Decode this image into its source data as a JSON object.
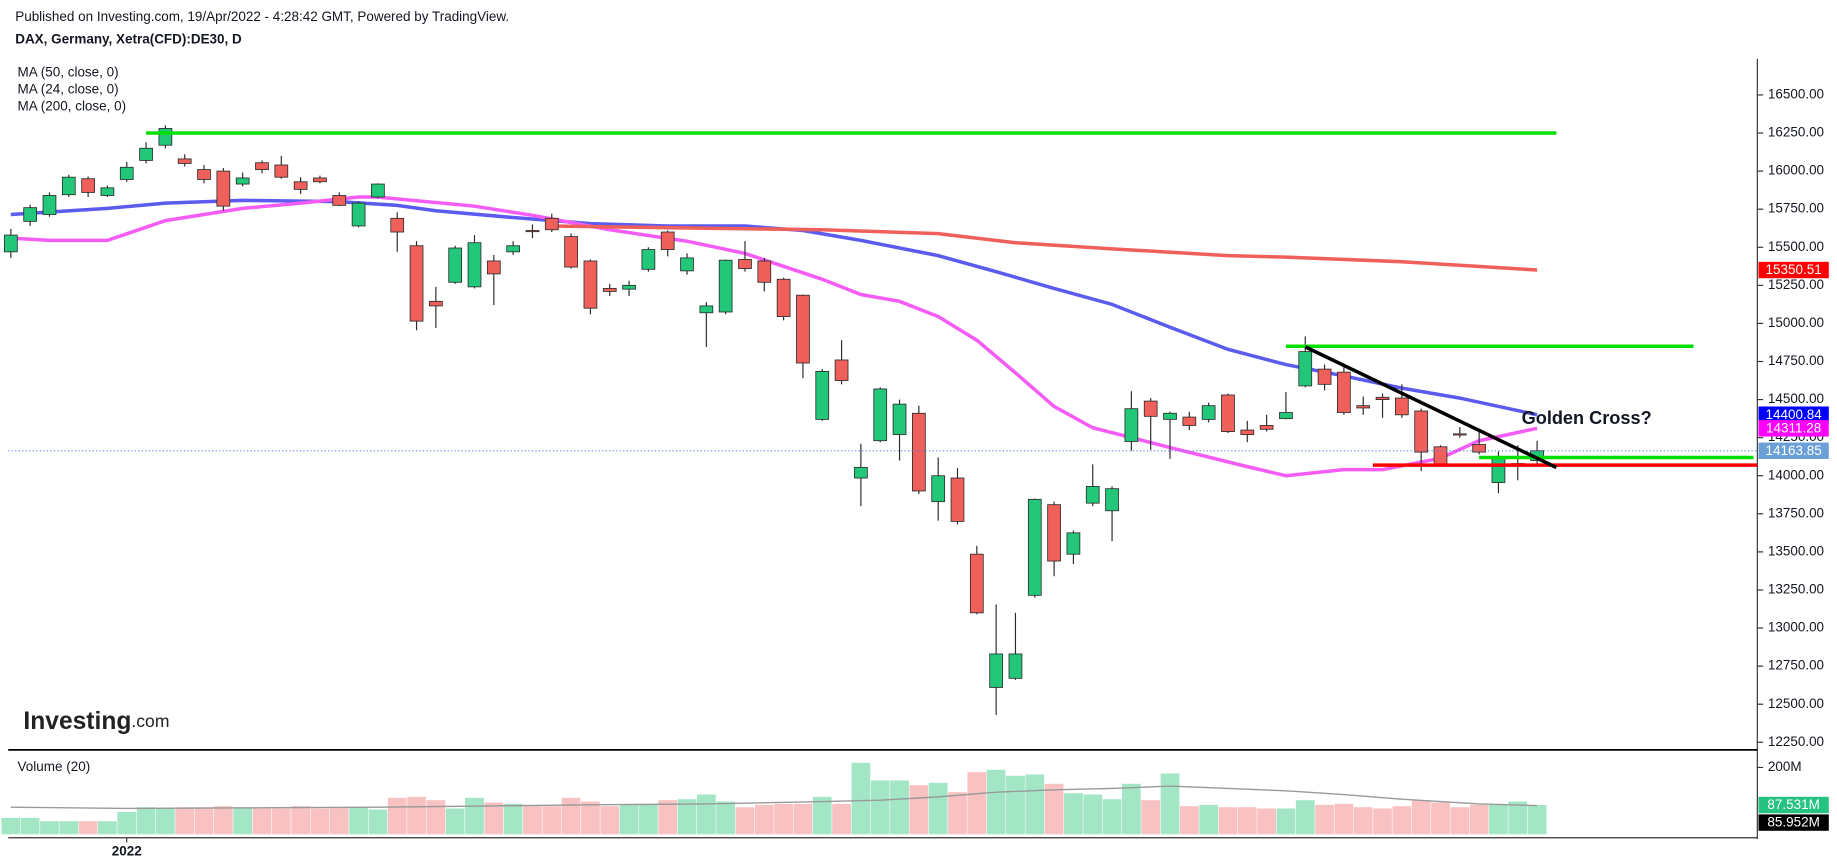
{
  "chart_data": {
    "type": "candlestick",
    "subtitle": "Published on Investing.com, 19/Apr/2022 - 4:28:42 GMT, Powered by TradingView.",
    "title": "DAX, Germany, Xetra(CFD):DE30, D",
    "categories": [
      null,
      null,
      null,
      null,
      null,
      null,
      "2022",
      null,
      null,
      null,
      null,
      null,
      null,
      null,
      null,
      null,
      null,
      null,
      null,
      null,
      null,
      null,
      null,
      null,
      null,
      null,
      null,
      null,
      null,
      null,
      null,
      null,
      null,
      null,
      null,
      null,
      null,
      null,
      null,
      null,
      null,
      null,
      null,
      null,
      null,
      null,
      null,
      null,
      null,
      null,
      null,
      null,
      null,
      null,
      null,
      null,
      null,
      null,
      null,
      null,
      null,
      null,
      null,
      null,
      null,
      null,
      null,
      null,
      null,
      null,
      null,
      null,
      null,
      null,
      null,
      null,
      null,
      null,
      null,
      null
    ],
    "open": [
      15470,
      15670,
      15715,
      15845,
      15950,
      15840,
      15945,
      16070,
      16170,
      16080,
      16010,
      16000,
      15915,
      16055,
      16040,
      15930,
      15955,
      15840,
      15640,
      15830,
      15690,
      15510,
      15145,
      15270,
      15240,
      15410,
      15470,
      15610,
      15690,
      15570,
      15410,
      15230,
      15225,
      15355,
      15600,
      15345,
      15070,
      15075,
      15420,
      15410,
      15290,
      15185,
      14370,
      14760,
      13985,
      14230,
      14270,
      14410,
      13830,
      13985,
      13485,
      12610,
      12670,
      13215,
      13810,
      13485,
      13820,
      13770,
      14225,
      14490,
      14370,
      14385,
      14370,
      14530,
      14300,
      14330,
      14375,
      14590,
      14700,
      14680,
      14460,
      14515,
      14510,
      14425,
      14190,
      14275,
      14205,
      13955,
      14070,
      14100
    ],
    "high": [
      15620,
      15780,
      15860,
      15975,
      15965,
      15905,
      16060,
      16190,
      16300,
      16110,
      16040,
      16020,
      15990,
      16070,
      16100,
      15960,
      15970,
      15860,
      15800,
      15920,
      15730,
      15540,
      15240,
      15510,
      15580,
      15450,
      15540,
      15650,
      15720,
      15590,
      15420,
      15260,
      15280,
      15500,
      15610,
      15460,
      15140,
      15420,
      15540,
      15430,
      15300,
      15190,
      14700,
      14890,
      14210,
      14580,
      14500,
      14460,
      14120,
      14050,
      13540,
      13155,
      13100,
      13850,
      13830,
      13640,
      14075,
      13930,
      14555,
      14510,
      14420,
      14420,
      14480,
      14540,
      14360,
      14400,
      14550,
      14915,
      14730,
      14720,
      14520,
      14540,
      14600,
      14440,
      14200,
      14320,
      14290,
      14160,
      14200,
      14230
    ],
    "low": [
      15430,
      15640,
      15700,
      15830,
      15830,
      15830,
      15930,
      16050,
      16150,
      16030,
      15920,
      15740,
      15900,
      15985,
      15950,
      15850,
      15920,
      15770,
      15630,
      15820,
      15470,
      14955,
      14970,
      15260,
      15230,
      15120,
      15450,
      15560,
      15600,
      15360,
      15060,
      15180,
      15180,
      15340,
      15440,
      15320,
      14845,
      15060,
      15340,
      15210,
      15020,
      14640,
      14360,
      14600,
      13800,
      14220,
      14100,
      13880,
      13705,
      13680,
      13090,
      12430,
      12660,
      13200,
      13340,
      13420,
      13800,
      13570,
      14165,
      14170,
      14110,
      14300,
      14350,
      14280,
      14220,
      14290,
      14370,
      14580,
      14560,
      14400,
      14400,
      14380,
      14380,
      14030,
      14060,
      14250,
      14140,
      13885,
      13970,
      14080
    ],
    "close": [
      15580,
      15760,
      15840,
      15960,
      15860,
      15890,
      16025,
      16150,
      16280,
      16050,
      15945,
      15770,
      15955,
      16010,
      15960,
      15880,
      15930,
      15775,
      15790,
      15915,
      15600,
      15015,
      15115,
      15495,
      15530,
      15325,
      15510,
      15605,
      15615,
      15370,
      15100,
      15210,
      15250,
      15485,
      15485,
      15430,
      15115,
      15415,
      15360,
      15270,
      15045,
      14740,
      14685,
      14625,
      14055,
      14570,
      14470,
      13900,
      14000,
      13700,
      13100,
      12830,
      12830,
      13845,
      13440,
      13625,
      13930,
      13915,
      14440,
      14390,
      14410,
      14330,
      14460,
      14290,
      14270,
      14305,
      14415,
      14815,
      14600,
      14415,
      14445,
      14500,
      14400,
      14155,
      14075,
      14270,
      14155,
      14125,
      14080,
      14163.85
    ],
    "up_color": "#22c77a",
    "down_color": "#f0605a",
    "border_color": "#2b2b2b",
    "xlim": [
      -0.5,
      90.4
    ],
    "ylim": [
      12200,
      16738
    ],
    "yticks": [
      {
        "value": 12250,
        "label": "12250.00"
      },
      {
        "value": 12500,
        "label": "12500.00"
      },
      {
        "value": 12750,
        "label": "12750.00"
      },
      {
        "value": 13000,
        "label": "13000.00"
      },
      {
        "value": 13250,
        "label": "13250.00"
      },
      {
        "value": 13500,
        "label": "13500.00"
      },
      {
        "value": 13750,
        "label": "13750.00"
      },
      {
        "value": 14000,
        "label": "14000.00"
      },
      {
        "value": 14250,
        "label": "14250.00"
      },
      {
        "value": 14500,
        "label": "14500.00"
      },
      {
        "value": 14750,
        "label": "14750.00"
      },
      {
        "value": 15000,
        "label": "15000.00"
      },
      {
        "value": 15250,
        "label": "15250.00"
      },
      {
        "value": 15500,
        "label": "15500.00"
      },
      {
        "value": 15750,
        "label": "15750.00"
      },
      {
        "value": 16000,
        "label": "16000.00"
      },
      {
        "value": 16250,
        "label": "16250.00"
      },
      {
        "value": 16500,
        "label": "16500.00"
      }
    ],
    "overlays": [
      {
        "name": "MA (50, close, 0)",
        "color": "#5b5bf0",
        "x": [
          0,
          5,
          8,
          12,
          17,
          20,
          22,
          26,
          30,
          34,
          38,
          41,
          44,
          48,
          51,
          54,
          57,
          60,
          63,
          66,
          69,
          72,
          75,
          79
        ],
        "values": [
          15715,
          15755,
          15790,
          15808,
          15800,
          15775,
          15740,
          15695,
          15655,
          15640,
          15640,
          15610,
          15545,
          15445,
          15340,
          15230,
          15125,
          14975,
          14830,
          14730,
          14655,
          14575,
          14510,
          14400.84
        ]
      },
      {
        "name": "MA (24, close, 0)",
        "color": "#f55cf5",
        "x": [
          0,
          2,
          5,
          8,
          12,
          15,
          18,
          19,
          24,
          27,
          31,
          35,
          38,
          42,
          44,
          46,
          48,
          50,
          52,
          54,
          56,
          60,
          64,
          66,
          69,
          71,
          74,
          76,
          79
        ],
        "values": [
          15560,
          15545,
          15545,
          15675,
          15755,
          15790,
          15830,
          15830,
          15770,
          15710,
          15615,
          15540,
          15460,
          15290,
          15190,
          15145,
          15045,
          14890,
          14675,
          14455,
          14315,
          14185,
          14060,
          14000,
          14040,
          14040,
          14115,
          14230,
          14311.28
        ]
      },
      {
        "name": "MA (200, close, 0)",
        "color": "#f0605a",
        "x": [
          28,
          36,
          42,
          48,
          52,
          57,
          63,
          66,
          72,
          79
        ],
        "values": [
          15640,
          15625,
          15615,
          15590,
          15530,
          15490,
          15445,
          15435,
          15405,
          15350.51
        ]
      }
    ],
    "price_labels": [
      {
        "value": 15350.51,
        "color": "#ff0000"
      },
      {
        "value": 14400.84,
        "color": "#0000ff"
      },
      {
        "value": 14311.28,
        "color": "#ff00ff"
      },
      {
        "value": 14163.85,
        "color": "#6a9fd8"
      }
    ],
    "lines": [
      {
        "color": "#00e000",
        "x": [
          7,
          80
        ],
        "y": [
          16250,
          16250
        ]
      },
      {
        "color": "#00e000",
        "x": [
          66,
          87.1
        ],
        "y": [
          14850,
          14850
        ]
      },
      {
        "color": "#00e000",
        "x": [
          76,
          90.2
        ],
        "y": [
          14120,
          14120
        ]
      },
      {
        "color": "#ff0000",
        "x": [
          70.5,
          90.4
        ],
        "y": [
          14070,
          14070
        ]
      },
      {
        "color": "#000000",
        "x": [
          67,
          80
        ],
        "y": [
          14846,
          14054
        ]
      }
    ],
    "notes": [
      {
        "text": "Golden Cross?",
        "x": 78.2,
        "y": 14370
      }
    ],
    "logo": {
      "name": "Investing",
      "suffix": ".com"
    },
    "volume": {
      "title": "Volume (20)",
      "up_color": "#a3e6c6",
      "down_color": "#f9c2c2",
      "values": [
        49,
        49,
        39,
        39,
        39,
        39,
        67,
        81,
        77,
        81,
        81,
        84,
        81,
        77,
        77,
        84,
        77,
        81,
        81,
        74,
        109,
        112,
        102,
        77,
        109,
        95,
        91,
        84,
        84,
        109,
        98,
        84,
        88,
        88,
        102,
        105,
        119,
        98,
        81,
        88,
        91,
        91,
        112,
        91,
        214,
        161,
        161,
        147,
        154,
        126,
        186,
        193,
        175,
        179,
        151,
        123,
        119,
        105,
        151,
        102,
        182,
        84,
        88,
        81,
        81,
        77,
        77,
        102,
        88,
        91,
        81,
        77,
        84,
        102,
        95,
        81,
        88,
        88,
        98,
        87.531
      ],
      "ylim": [
        0,
        235
      ],
      "yticks": [
        {
          "value": 200,
          "label": "200M"
        }
      ],
      "ma": {
        "color": "#9a9a9a",
        "x": [
          0,
          6,
          19,
          30,
          36,
          42,
          45,
          48,
          51,
          54,
          57,
          60,
          63,
          66,
          69,
          72,
          76,
          79
        ],
        "values": [
          81,
          77,
          81,
          88,
          91,
          98,
          102,
          112,
          126,
          133,
          137,
          144,
          137,
          130,
          119,
          105,
          91,
          85.952
        ]
      },
      "labels": [
        {
          "value": 87.531,
          "label": "87.531M",
          "color": "#26c281"
        },
        {
          "value": 85.952,
          "label": "85.952M",
          "color": "#000000"
        }
      ]
    }
  }
}
